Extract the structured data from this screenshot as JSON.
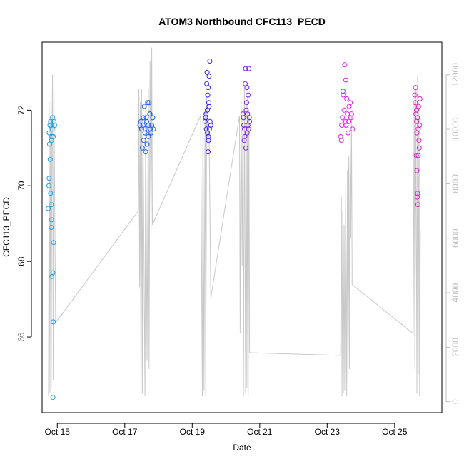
{
  "chart_data": {
    "type": "scatter",
    "title": "ATOM3 Northbound CFC113_PECD",
    "xlabel": "Date",
    "ylabel": "CFC113_PECD",
    "x_unit": "days since Oct 14 00:00",
    "xlim": [
      14.55,
      26.4
    ],
    "ylim": [
      64.0,
      73.8
    ],
    "y2lim": [
      -400,
      13200
    ],
    "x_ticks": [
      {
        "day": 15,
        "label": "Oct 15"
      },
      {
        "day": 17,
        "label": "Oct 17"
      },
      {
        "day": 19,
        "label": "Oct 19"
      },
      {
        "day": 21,
        "label": "Oct 21"
      },
      {
        "day": 23,
        "label": "Oct 23"
      },
      {
        "day": 25,
        "label": "Oct 25"
      }
    ],
    "y_ticks": [
      "66",
      "68",
      "70",
      "72"
    ],
    "y2_ticks": [
      "0",
      "2000",
      "4000",
      "6000",
      "8000",
      "10000",
      "12000"
    ],
    "colors": {
      "altitude_line": "#c8c8c8",
      "axis": "#000000",
      "right_axis": "#bebebe",
      "flights": [
        "#1ca0e6",
        "#1b5ef0",
        "#3323f2",
        "#7a1fe8",
        "#e020e6",
        "#e21ec3"
      ]
    },
    "series": [
      {
        "name": "CFC113_PECD",
        "marker": "open-circle",
        "x_y_color": [
          [
            14.8,
            71.7,
            0
          ],
          [
            14.78,
            71.6,
            0
          ],
          [
            14.85,
            71.5,
            0
          ],
          [
            14.76,
            71.4,
            0
          ],
          [
            14.88,
            71.3,
            0
          ],
          [
            14.83,
            71.2,
            0
          ],
          [
            14.77,
            71.1,
            0
          ],
          [
            14.9,
            71.7,
            0
          ],
          [
            14.81,
            71.6,
            0
          ],
          [
            14.86,
            71.8,
            0
          ],
          [
            14.79,
            70.7,
            0
          ],
          [
            14.76,
            70.2,
            0
          ],
          [
            14.75,
            70.0,
            0
          ],
          [
            14.8,
            69.8,
            0
          ],
          [
            14.82,
            69.5,
            0
          ],
          [
            14.73,
            69.4,
            0
          ],
          [
            14.83,
            69.1,
            0
          ],
          [
            14.82,
            68.9,
            0
          ],
          [
            14.89,
            68.5,
            0
          ],
          [
            14.87,
            67.7,
            0
          ],
          [
            14.84,
            67.6,
            0
          ],
          [
            14.88,
            66.4,
            0
          ],
          [
            14.87,
            64.4,
            0
          ],
          [
            14.92,
            71.6,
            0
          ],
          [
            14.84,
            71.3,
            0
          ],
          [
            17.45,
            71.6,
            1
          ],
          [
            17.5,
            71.5,
            1
          ],
          [
            17.55,
            71.8,
            1
          ],
          [
            17.6,
            71.4,
            1
          ],
          [
            17.65,
            71.7,
            1
          ],
          [
            17.7,
            71.3,
            1
          ],
          [
            17.75,
            71.9,
            1
          ],
          [
            17.8,
            71.6,
            1
          ],
          [
            17.85,
            71.5,
            1
          ],
          [
            17.58,
            72.1,
            1
          ],
          [
            17.68,
            72.2,
            1
          ],
          [
            17.72,
            72.2,
            1
          ],
          [
            17.52,
            71.0,
            1
          ],
          [
            17.62,
            70.9,
            1
          ],
          [
            17.48,
            71.7,
            1
          ],
          [
            17.78,
            71.4,
            1
          ],
          [
            17.83,
            71.8,
            1
          ],
          [
            17.56,
            71.2,
            1
          ],
          [
            17.66,
            71.1,
            1
          ],
          [
            17.74,
            71.9,
            1
          ],
          [
            17.6,
            71.5,
            1
          ],
          [
            17.7,
            71.6,
            1
          ],
          [
            17.64,
            71.8,
            1
          ],
          [
            17.54,
            71.6,
            1
          ],
          [
            17.76,
            71.5,
            1
          ],
          [
            19.4,
            71.8,
            2
          ],
          [
            19.45,
            72.0,
            2
          ],
          [
            19.5,
            72.1,
            2
          ],
          [
            19.42,
            71.5,
            2
          ],
          [
            19.48,
            71.3,
            2
          ],
          [
            19.52,
            73.3,
            2
          ],
          [
            19.44,
            73.0,
            2
          ],
          [
            19.5,
            72.9,
            2
          ],
          [
            19.43,
            72.7,
            2
          ],
          [
            19.47,
            72.6,
            2
          ],
          [
            19.46,
            72.4,
            2
          ],
          [
            19.49,
            72.2,
            2
          ],
          [
            19.41,
            71.9,
            2
          ],
          [
            19.53,
            71.7,
            2
          ],
          [
            19.45,
            71.4,
            2
          ],
          [
            19.48,
            71.2,
            2
          ],
          [
            19.47,
            70.9,
            2
          ],
          [
            19.55,
            71.6,
            2
          ],
          [
            19.38,
            71.7,
            2
          ],
          [
            19.51,
            71.5,
            2
          ],
          [
            20.5,
            71.9,
            3
          ],
          [
            20.55,
            71.5,
            3
          ],
          [
            20.6,
            72.0,
            3
          ],
          [
            20.65,
            71.6,
            3
          ],
          [
            20.58,
            73.1,
            3
          ],
          [
            20.68,
            73.1,
            3
          ],
          [
            20.57,
            72.7,
            3
          ],
          [
            20.62,
            72.6,
            3
          ],
          [
            20.66,
            72.4,
            3
          ],
          [
            20.52,
            71.8,
            3
          ],
          [
            20.56,
            71.3,
            3
          ],
          [
            20.59,
            71.0,
            3
          ],
          [
            20.63,
            71.4,
            3
          ],
          [
            20.7,
            71.7,
            3
          ],
          [
            20.54,
            71.2,
            3
          ],
          [
            20.61,
            72.2,
            3
          ],
          [
            20.64,
            71.9,
            3
          ],
          [
            20.67,
            71.5,
            3
          ],
          [
            20.53,
            71.6,
            3
          ],
          [
            20.69,
            71.8,
            3
          ],
          [
            23.4,
            71.3,
            4
          ],
          [
            23.45,
            71.8,
            4
          ],
          [
            23.5,
            72.0,
            4
          ],
          [
            23.55,
            71.7,
            4
          ],
          [
            23.6,
            71.9,
            4
          ],
          [
            23.65,
            72.1,
            4
          ],
          [
            23.7,
            71.8,
            4
          ],
          [
            23.75,
            71.5,
            4
          ],
          [
            23.52,
            73.2,
            4
          ],
          [
            23.55,
            72.8,
            4
          ],
          [
            23.47,
            72.5,
            4
          ],
          [
            23.58,
            72.3,
            4
          ],
          [
            23.43,
            71.6,
            4
          ],
          [
            23.62,
            71.4,
            4
          ],
          [
            23.68,
            72.2,
            4
          ],
          [
            23.72,
            71.9,
            4
          ],
          [
            23.48,
            72.4,
            4
          ],
          [
            23.56,
            71.6,
            4
          ],
          [
            23.64,
            71.7,
            4
          ],
          [
            23.42,
            71.2,
            4
          ],
          [
            25.6,
            72.4,
            5
          ],
          [
            25.65,
            72.0,
            5
          ],
          [
            25.7,
            71.5,
            5
          ],
          [
            25.62,
            72.6,
            5
          ],
          [
            25.68,
            71.8,
            5
          ],
          [
            25.72,
            71.2,
            5
          ],
          [
            25.64,
            70.8,
            5
          ],
          [
            25.7,
            70.8,
            5
          ],
          [
            25.66,
            70.4,
            5
          ],
          [
            25.68,
            69.8,
            5
          ],
          [
            25.67,
            69.7,
            5
          ],
          [
            25.69,
            69.5,
            5
          ],
          [
            25.75,
            72.3,
            5
          ],
          [
            25.63,
            71.9,
            5
          ],
          [
            25.74,
            71.6,
            5
          ],
          [
            25.61,
            72.2,
            5
          ],
          [
            25.73,
            71.0,
            5
          ],
          [
            25.66,
            71.4,
            5
          ],
          [
            25.71,
            72.1,
            5
          ],
          [
            25.65,
            71.7,
            5
          ]
        ]
      },
      {
        "name": "Altitude (right axis, m)",
        "type": "line",
        "x_y": [
          [
            14.74,
            200
          ],
          [
            14.76,
            11000
          ],
          [
            14.78,
            300
          ],
          [
            14.8,
            10500
          ],
          [
            14.82,
            500
          ],
          [
            14.84,
            9500
          ],
          [
            14.86,
            12000
          ],
          [
            14.88,
            800
          ],
          [
            14.9,
            11500
          ],
          [
            14.95,
            2900
          ],
          [
            17.4,
            7000
          ],
          [
            17.42,
            11500
          ],
          [
            17.44,
            4200
          ],
          [
            17.46,
            11000
          ],
          [
            17.48,
            200
          ],
          [
            17.5,
            11500
          ],
          [
            17.52,
            300
          ],
          [
            17.54,
            10500
          ],
          [
            17.6,
            200
          ],
          [
            17.62,
            11000
          ],
          [
            17.66,
            1500
          ],
          [
            17.7,
            11500
          ],
          [
            17.72,
            1200
          ],
          [
            17.75,
            12500
          ],
          [
            17.78,
            6200
          ],
          [
            17.8,
            13000
          ],
          [
            17.82,
            6500
          ],
          [
            19.25,
            10500
          ],
          [
            19.3,
            200
          ],
          [
            19.32,
            11000
          ],
          [
            19.35,
            400
          ],
          [
            19.38,
            10800
          ],
          [
            19.4,
            200
          ],
          [
            19.43,
            11200
          ],
          [
            19.46,
            9500
          ],
          [
            19.5,
            10000
          ],
          [
            19.55,
            3800
          ],
          [
            20.4,
            10500
          ],
          [
            20.42,
            2500
          ],
          [
            20.45,
            11000
          ],
          [
            20.48,
            5000
          ],
          [
            20.5,
            10800
          ],
          [
            20.52,
            200
          ],
          [
            20.55,
            11500
          ],
          [
            20.58,
            300
          ],
          [
            20.6,
            11000
          ],
          [
            20.62,
            500
          ],
          [
            20.64,
            11200
          ],
          [
            20.66,
            200
          ],
          [
            20.68,
            10500
          ],
          [
            20.7,
            1800
          ],
          [
            23.4,
            1700
          ],
          [
            23.42,
            7500
          ],
          [
            23.44,
            200
          ],
          [
            23.46,
            7000
          ],
          [
            23.48,
            300
          ],
          [
            23.5,
            6500
          ],
          [
            23.52,
            400
          ],
          [
            23.55,
            8000
          ],
          [
            23.58,
            200
          ],
          [
            23.6,
            8500
          ],
          [
            23.62,
            1000
          ],
          [
            23.64,
            9000
          ],
          [
            23.66,
            1200
          ],
          [
            23.68,
            9500
          ],
          [
            23.7,
            6000
          ],
          [
            23.72,
            10500
          ],
          [
            23.74,
            4300
          ],
          [
            25.55,
            2500
          ],
          [
            25.58,
            11000
          ],
          [
            25.6,
            1200
          ],
          [
            25.63,
            11500
          ],
          [
            25.66,
            300
          ],
          [
            25.68,
            12000
          ],
          [
            25.7,
            1000
          ],
          [
            25.72,
            11000
          ],
          [
            25.74,
            200
          ],
          [
            25.76,
            6300
          ]
        ]
      }
    ]
  }
}
